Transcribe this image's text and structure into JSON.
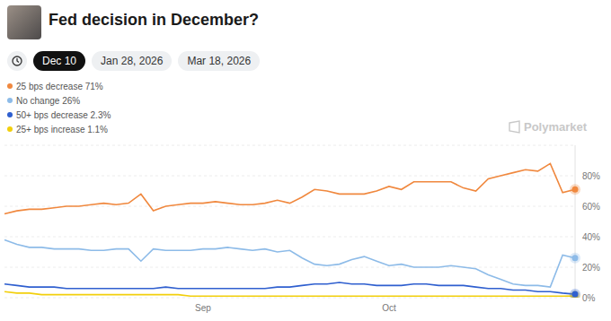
{
  "chart_data": {
    "type": "line",
    "title": "Fed decision in December?",
    "tabs": [
      "Dec 10",
      "Jan 28, 2026",
      "Mar 18, 2026"
    ],
    "active_tab": "Dec 10",
    "watermark": "Polymarket",
    "categories": [
      null,
      null,
      null,
      null,
      null,
      null,
      null,
      null,
      null,
      null,
      null,
      null,
      null,
      null,
      null,
      null,
      "Sep",
      null,
      null,
      null,
      null,
      null,
      null,
      null,
      null,
      null,
      null,
      null,
      null,
      null,
      null,
      "Oct",
      null,
      null,
      null,
      null,
      null,
      null,
      null,
      null,
      null,
      null,
      null,
      null,
      null,
      null,
      null
    ],
    "series": [
      {
        "name": "25 bps decrease",
        "current": "71%",
        "color": "#f0883e",
        "values": [
          55,
          57,
          58,
          58,
          59,
          60,
          60,
          61,
          62,
          61,
          62,
          68,
          57,
          60,
          61,
          62,
          62,
          63,
          62,
          61,
          61,
          62,
          64,
          62,
          66,
          71,
          70,
          68,
          68,
          68,
          70,
          73,
          71,
          76,
          76,
          76,
          76,
          72,
          70,
          78,
          80,
          82,
          84,
          83,
          88,
          69,
          71
        ]
      },
      {
        "name": "No change",
        "current": "26%",
        "color": "#8dbbe8",
        "values": [
          38,
          35,
          33,
          33,
          32,
          32,
          32,
          31,
          31,
          32,
          32,
          24,
          32,
          31,
          31,
          31,
          32,
          32,
          33,
          32,
          31,
          32,
          30,
          31,
          26,
          22,
          21,
          22,
          25,
          27,
          24,
          21,
          22,
          20,
          20,
          20,
          21,
          20,
          19,
          15,
          12,
          9,
          8,
          8,
          7,
          28,
          26
        ]
      },
      {
        "name": "50+ bps decrease",
        "current": "2.3%",
        "color": "#2f5fcf",
        "values": [
          9,
          8,
          7,
          7,
          7,
          6,
          6,
          6,
          6,
          6,
          6,
          6,
          6,
          7,
          6,
          6,
          6,
          6,
          6,
          6,
          6,
          6,
          7,
          7,
          8,
          9,
          9,
          10,
          9,
          9,
          8,
          8,
          8,
          9,
          9,
          8,
          8,
          8,
          7,
          6,
          6,
          5,
          5,
          4,
          4,
          3,
          2.3
        ]
      },
      {
        "name": "25+ bps increase",
        "current": "1.1%",
        "color": "#f2cf0c",
        "values": [
          4,
          3,
          3,
          2,
          2,
          2,
          2,
          2,
          2,
          2,
          2,
          2,
          2,
          2,
          2,
          1,
          1,
          1,
          1,
          1,
          1,
          1,
          1,
          1,
          1,
          1,
          1,
          1,
          1,
          1,
          1,
          1,
          1,
          1,
          1,
          1,
          1,
          1,
          1,
          1,
          1,
          1,
          1,
          1,
          1,
          1,
          1.1
        ]
      }
    ],
    "ylim": [
      0,
      100
    ],
    "yticks": [
      {
        "value": 0,
        "label": "0%"
      },
      {
        "value": 20,
        "label": "20%"
      },
      {
        "value": 40,
        "label": "40%"
      },
      {
        "value": 60,
        "label": "60%"
      },
      {
        "value": 80,
        "label": "80%"
      }
    ],
    "grid": true
  }
}
